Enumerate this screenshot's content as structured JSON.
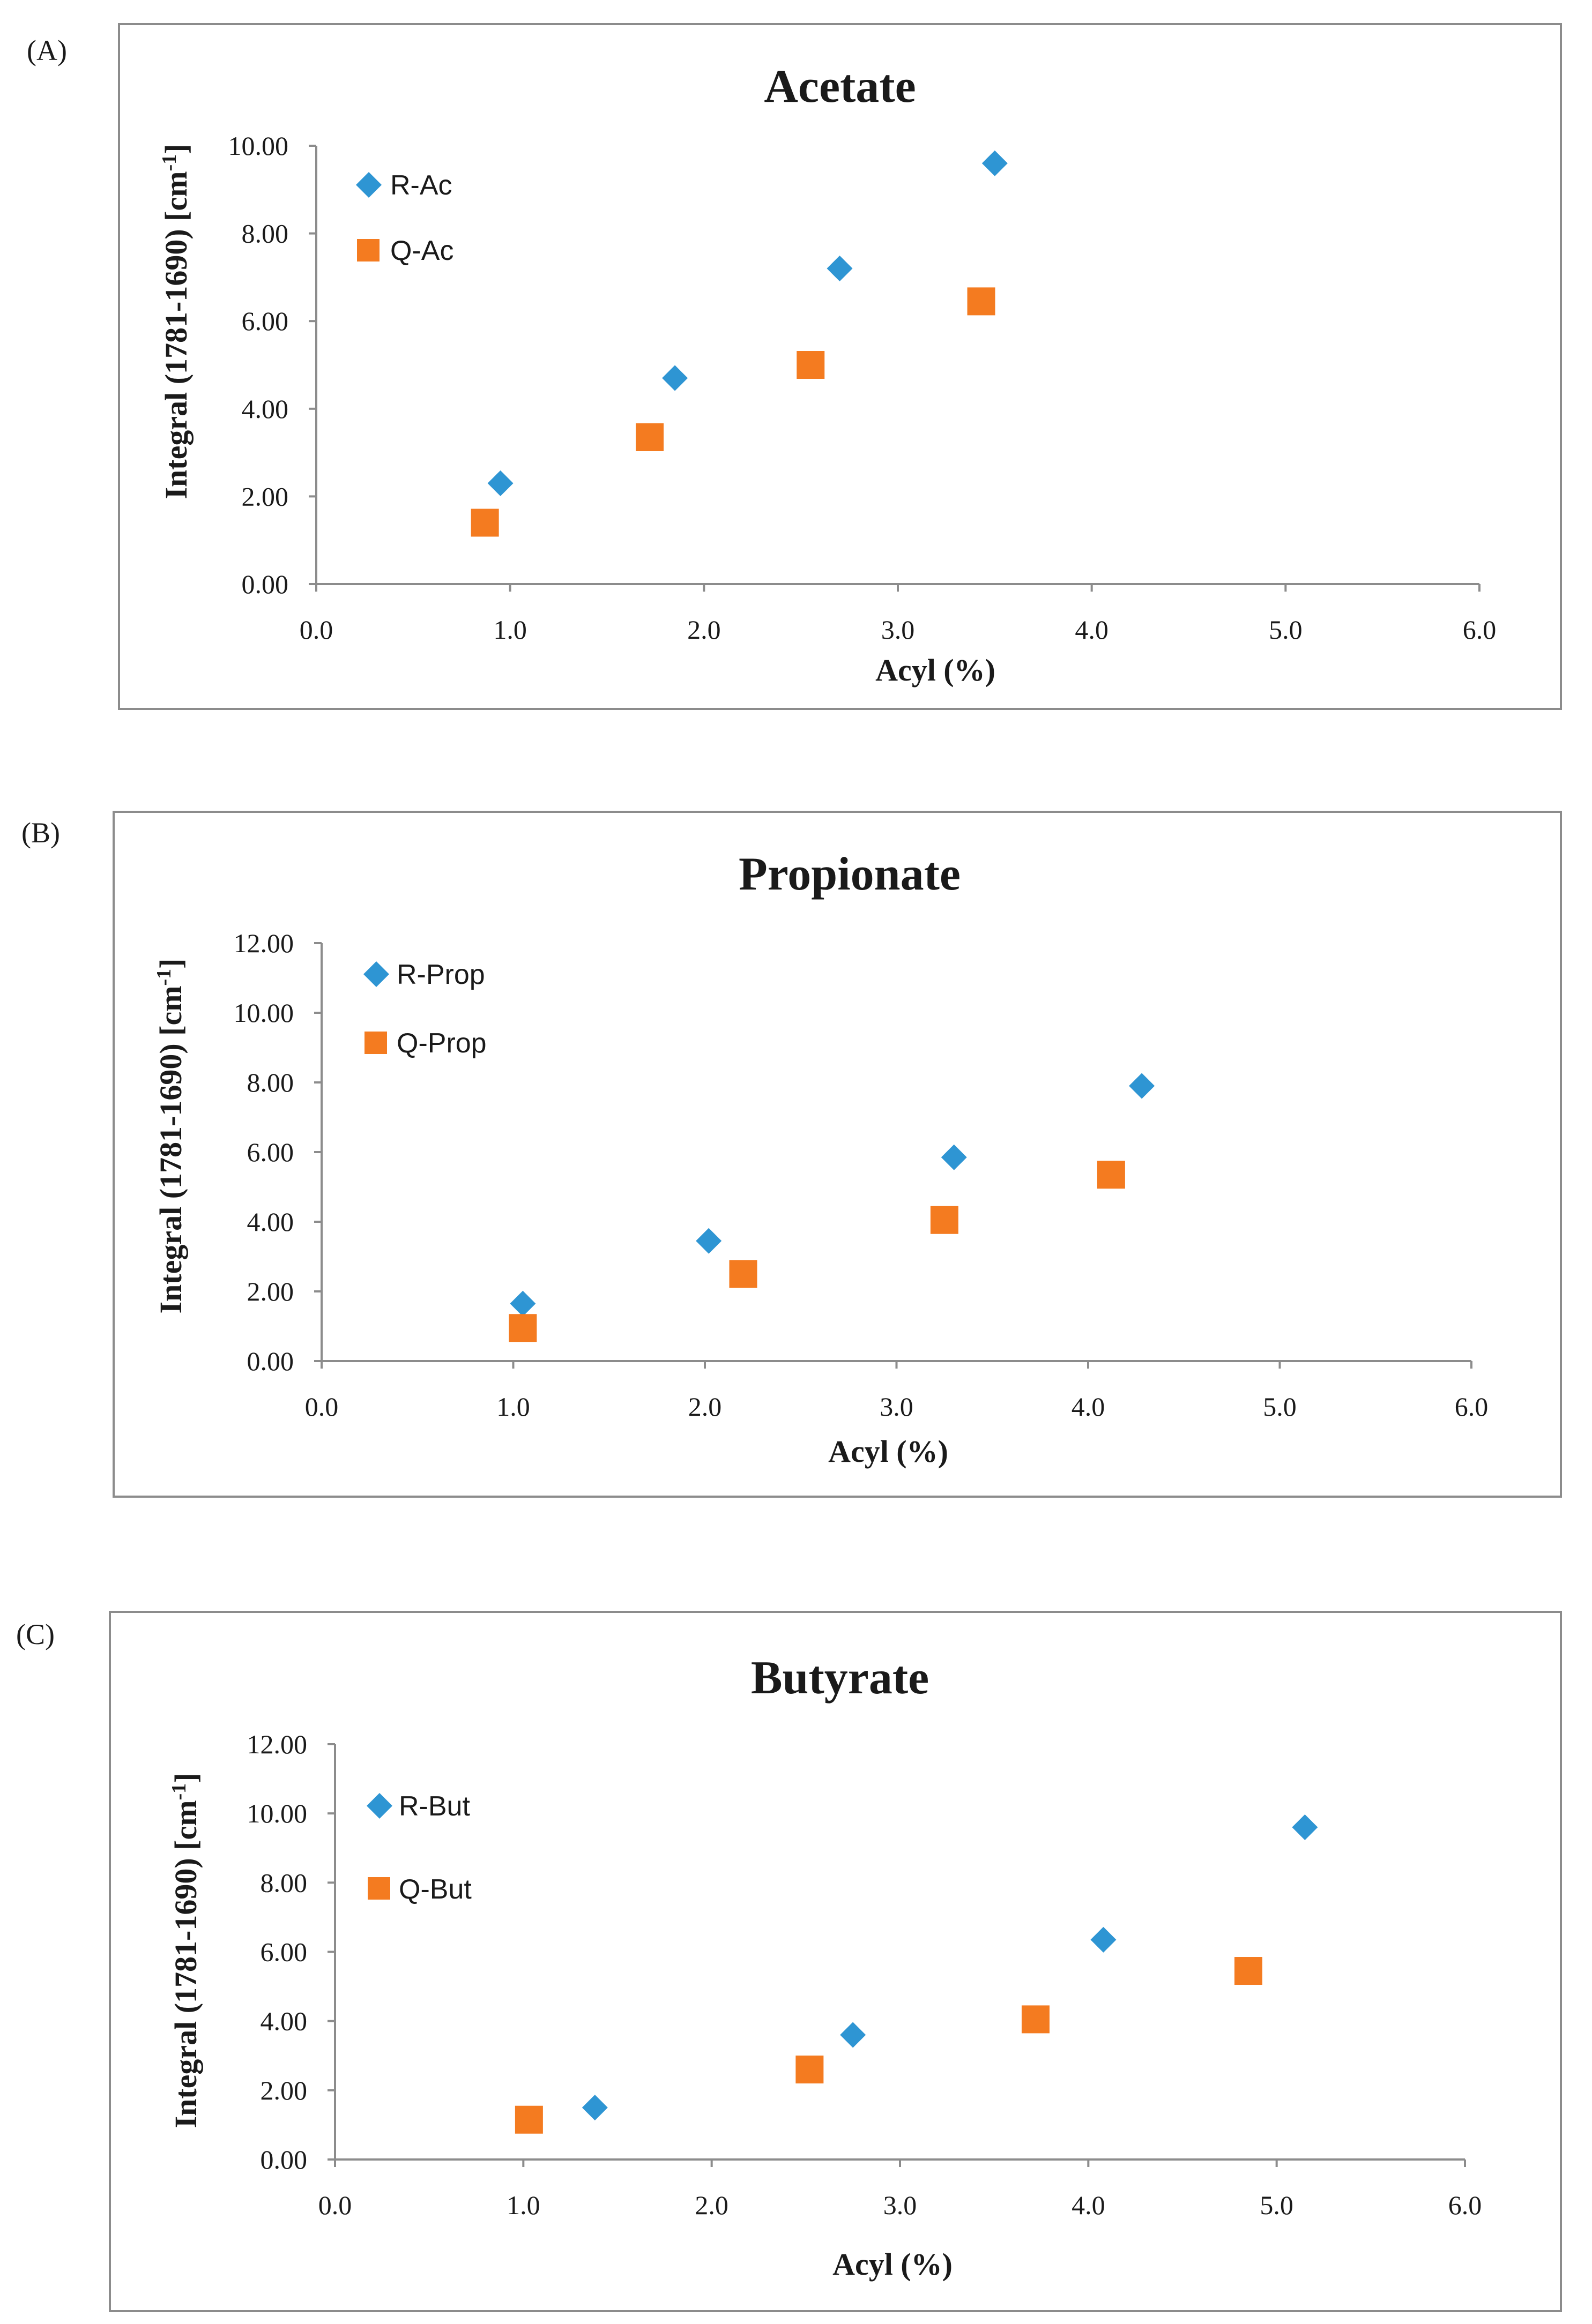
{
  "figure": {
    "colors": {
      "r_series": "#2e95d3",
      "q_series": "#f47b20",
      "axis": "#8c8c8c",
      "frame": "#8c8c8c",
      "text": "#1a1a1a"
    }
  },
  "chart_data": [
    {
      "panel": "(A)",
      "type": "scatter",
      "title": "Acetate",
      "xlabel": "Acyl (%)",
      "ylabel_main": "Integral (1781-1690) [cm",
      "ylabel_sup": "-1",
      "ylabel_end": "]",
      "xlim": [
        0,
        6
      ],
      "ylim": [
        0,
        10
      ],
      "xticks": [
        "0.0",
        "1.0",
        "2.0",
        "3.0",
        "4.0",
        "5.0",
        "6.0"
      ],
      "yticks": [
        "0.00",
        "2.00",
        "4.00",
        "6.00",
        "8.00",
        "10.00"
      ],
      "legend_position": "top-left",
      "series": [
        {
          "name": "R-Ac",
          "marker": "diamond",
          "x": [
            0.95,
            1.85,
            2.7,
            3.5
          ],
          "y": [
            2.3,
            4.7,
            7.2,
            9.6
          ]
        },
        {
          "name": "Q-Ac",
          "marker": "square",
          "x": [
            0.87,
            1.72,
            2.55,
            3.43
          ],
          "y": [
            1.4,
            3.35,
            5.0,
            6.45
          ]
        }
      ]
    },
    {
      "panel": "(B)",
      "type": "scatter",
      "title": "Propionate",
      "xlabel": "Acyl (%)",
      "ylabel_main": "Integral (1781-1690) [cm",
      "ylabel_sup": "-1",
      "ylabel_end": "]",
      "xlim": [
        0,
        6
      ],
      "ylim": [
        0,
        12
      ],
      "xticks": [
        "0.0",
        "1.0",
        "2.0",
        "3.0",
        "4.0",
        "5.0",
        "6.0"
      ],
      "yticks": [
        "0.00",
        "2.00",
        "4.00",
        "6.00",
        "8.00",
        "10.00",
        "12.00"
      ],
      "legend_position": "top-left",
      "series": [
        {
          "name": "R-Prop",
          "marker": "diamond",
          "x": [
            1.05,
            2.02,
            3.3,
            4.28
          ],
          "y": [
            1.65,
            3.45,
            5.85,
            7.9
          ]
        },
        {
          "name": "Q-Prop",
          "marker": "square",
          "x": [
            1.05,
            2.2,
            3.25,
            4.12
          ],
          "y": [
            0.95,
            2.5,
            4.05,
            5.35
          ]
        }
      ]
    },
    {
      "panel": "(C)",
      "type": "scatter",
      "title": "Butyrate",
      "xlabel": "Acyl (%)",
      "ylabel_main": "Integral (1781-1690) [cm",
      "ylabel_sup": "-1",
      "ylabel_end": "]",
      "xlim": [
        0,
        6
      ],
      "ylim": [
        0,
        12
      ],
      "xticks": [
        "0.0",
        "1.0",
        "2.0",
        "3.0",
        "4.0",
        "5.0",
        "6.0"
      ],
      "yticks": [
        "0.00",
        "2.00",
        "4.00",
        "6.00",
        "8.00",
        "10.00",
        "12.00"
      ],
      "legend_position": "top-left",
      "series": [
        {
          "name": "R-But",
          "marker": "diamond",
          "x": [
            1.38,
            2.75,
            4.08,
            5.15
          ],
          "y": [
            1.5,
            3.6,
            6.35,
            9.6
          ]
        },
        {
          "name": "Q-But",
          "marker": "square",
          "x": [
            1.03,
            2.52,
            3.72,
            4.85
          ],
          "y": [
            1.15,
            2.6,
            4.05,
            5.45
          ]
        }
      ]
    }
  ]
}
